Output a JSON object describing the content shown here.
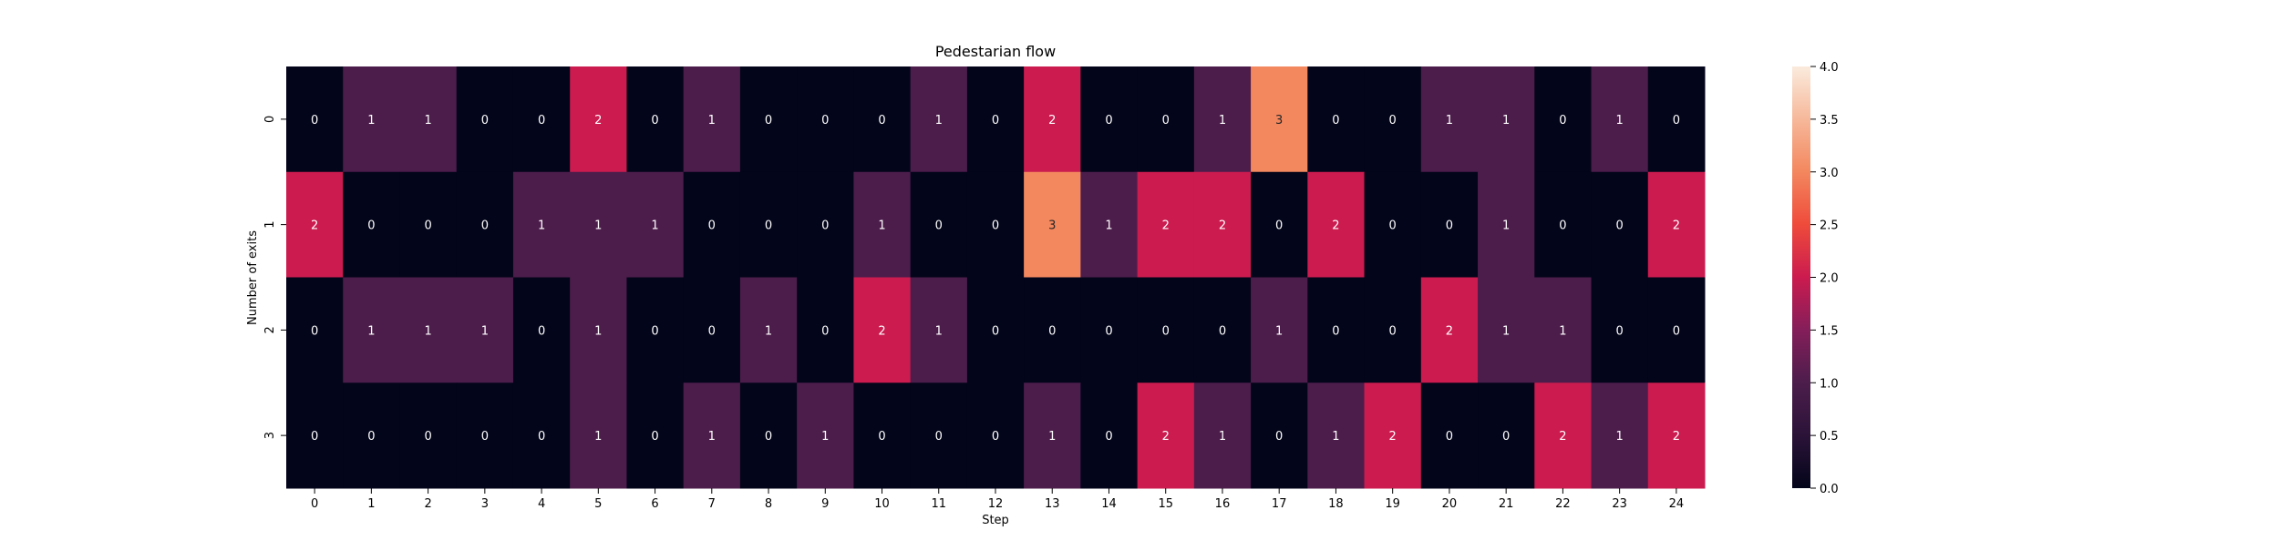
{
  "chart_data": {
    "type": "heatmap",
    "title": "Pedestarian flow",
    "xlabel": "Step",
    "ylabel": "Number of exits",
    "x_categories": [
      "0",
      "1",
      "2",
      "3",
      "4",
      "5",
      "6",
      "7",
      "8",
      "9",
      "10",
      "11",
      "12",
      "13",
      "14",
      "15",
      "16",
      "17",
      "18",
      "19",
      "20",
      "21",
      "22",
      "23",
      "24"
    ],
    "y_categories": [
      "0",
      "1",
      "2",
      "3"
    ],
    "values": [
      [
        0,
        1,
        1,
        0,
        0,
        2,
        0,
        1,
        0,
        0,
        0,
        1,
        0,
        2,
        0,
        0,
        1,
        3,
        0,
        0,
        1,
        1,
        0,
        1,
        0
      ],
      [
        2,
        0,
        0,
        0,
        1,
        1,
        1,
        0,
        0,
        0,
        1,
        0,
        0,
        3,
        1,
        2,
        2,
        0,
        2,
        0,
        0,
        1,
        0,
        0,
        2
      ],
      [
        0,
        1,
        1,
        1,
        0,
        1,
        0,
        0,
        1,
        0,
        2,
        1,
        0,
        0,
        0,
        0,
        0,
        1,
        0,
        0,
        2,
        1,
        1,
        0,
        0
      ],
      [
        0,
        0,
        0,
        0,
        0,
        1,
        0,
        1,
        0,
        1,
        0,
        0,
        0,
        1,
        0,
        2,
        1,
        0,
        1,
        2,
        0,
        0,
        2,
        1,
        2
      ]
    ],
    "colorbar": {
      "min": 0,
      "max": 4,
      "ticks": [
        "0.0",
        "0.5",
        "1.0",
        "1.5",
        "2.0",
        "2.5",
        "3.0",
        "3.5",
        "4.0"
      ]
    },
    "colormap": "rocket",
    "annotations": true
  }
}
